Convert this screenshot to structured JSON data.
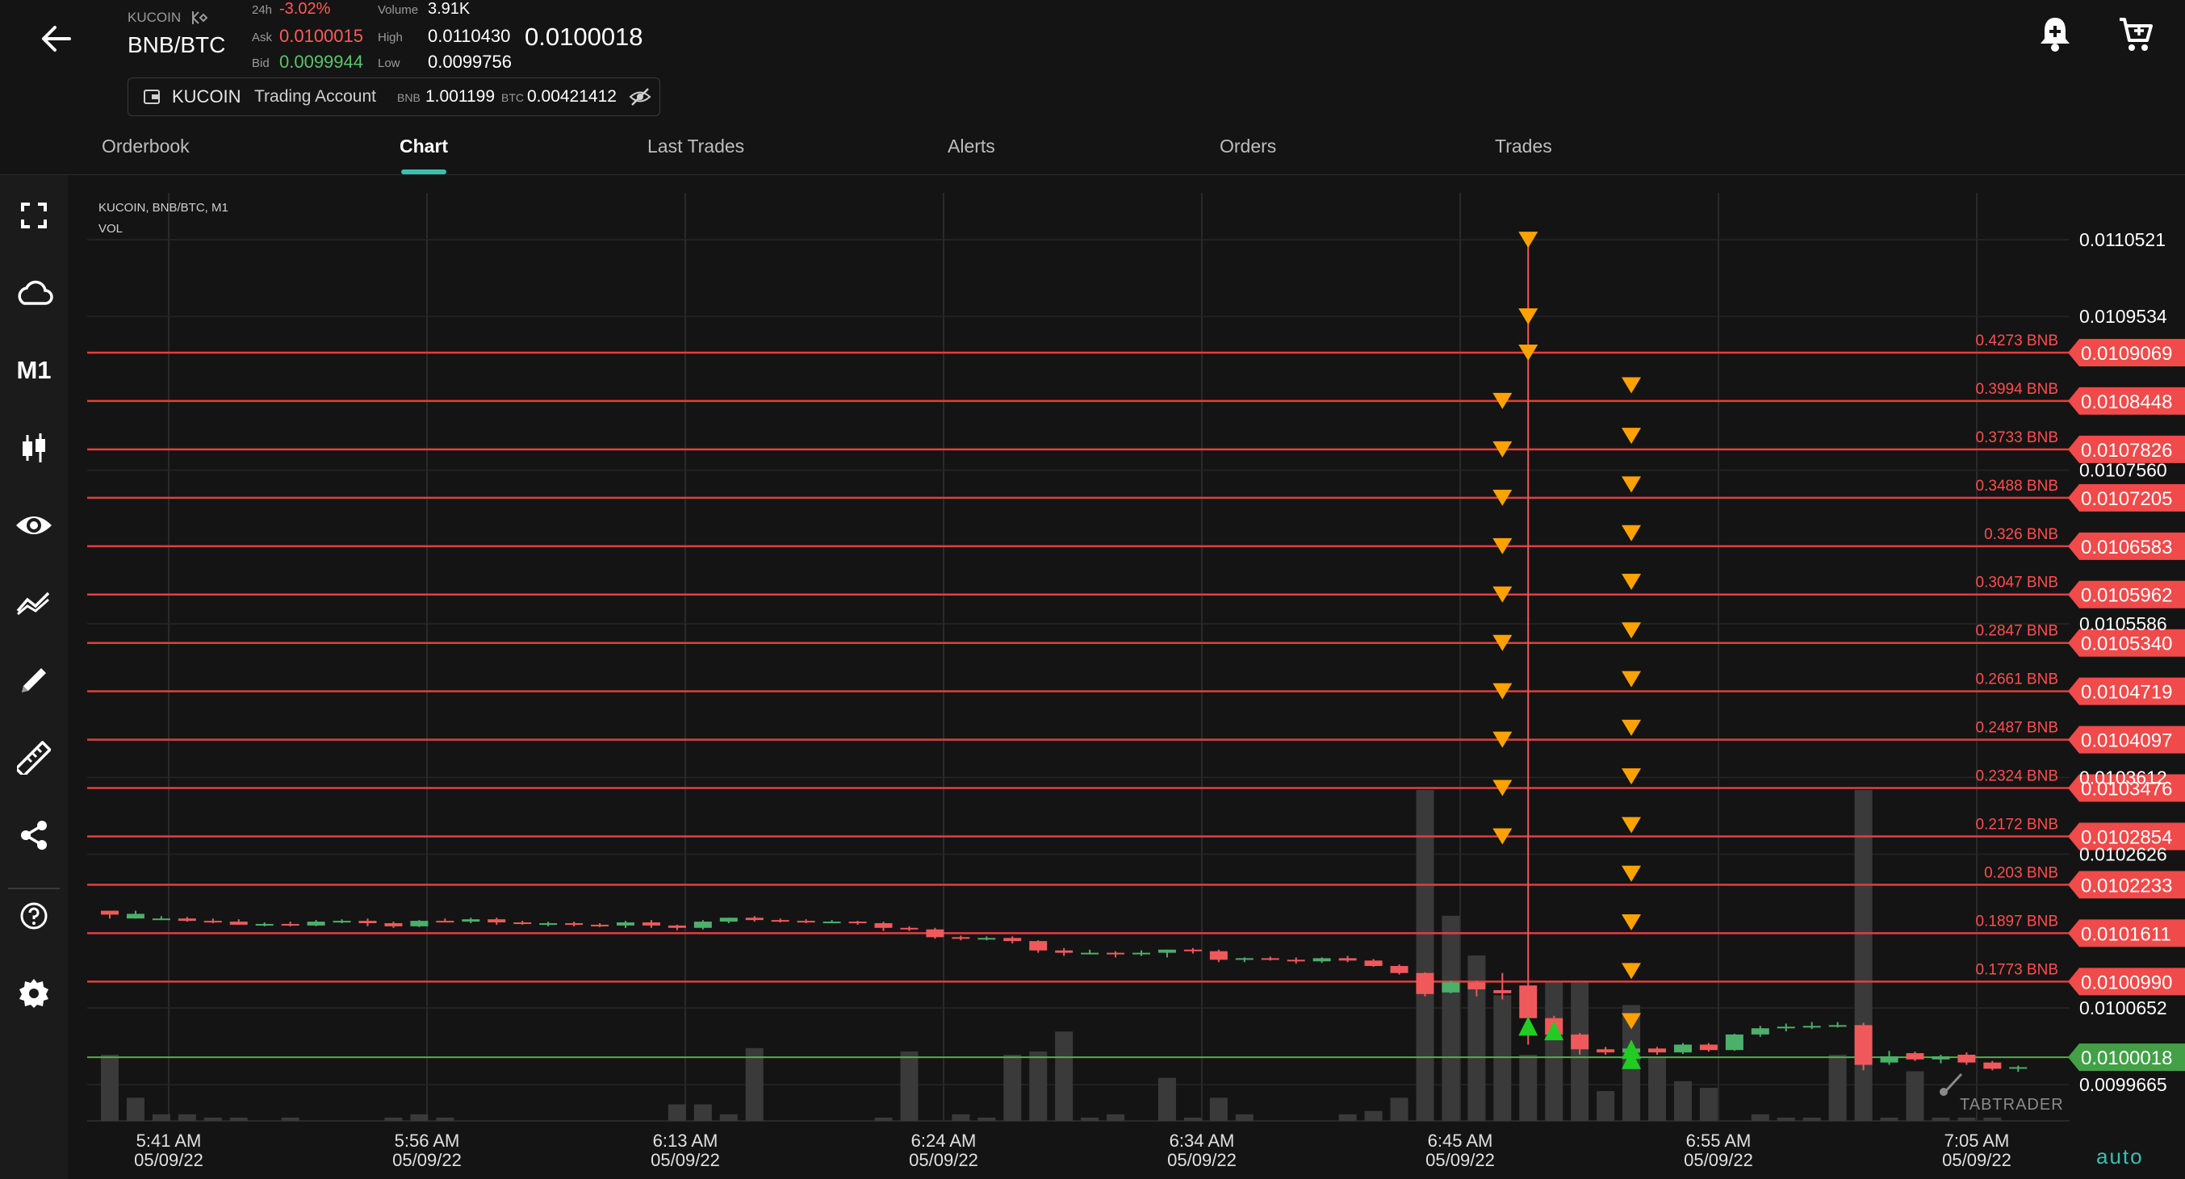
{
  "header": {
    "exchange_label": "KUCOIN",
    "pair": "BNB/BTC",
    "change_label": "24h",
    "change": "-3.02%",
    "ask_label": "Ask",
    "ask": "0.0100015",
    "bid_label": "Bid",
    "bid": "0.0099944",
    "volume_label": "Volume",
    "volume": "3.91K",
    "high_label": "High",
    "high": "0.0110430",
    "low_label": "Low",
    "low": "0.0099756",
    "last_price": "0.0100018"
  },
  "account": {
    "exchange": "KUCOIN",
    "name": "Trading Account",
    "bnb_label": "BNB",
    "bnb": "1.001199",
    "btc_label": "BTC",
    "btc": "0.00421412"
  },
  "tabs": [
    "Orderbook",
    "Chart",
    "Last Trades",
    "Alerts",
    "Orders",
    "Trades"
  ],
  "active_tab": "Chart",
  "sidebar": {
    "timeframe": "M1",
    "icons": [
      "fullscreen-icon",
      "cloud-icon",
      "timeframe",
      "candles-icon",
      "eye-icon",
      "indicators-icon",
      "pencil-icon",
      "ruler-icon",
      "share-icon",
      "help-icon",
      "settings-icon"
    ]
  },
  "chart_meta": {
    "legend_line1": "KUCOIN, BNB/BTC, M1",
    "legend_line2": "VOL",
    "watermark": "TABTRADER",
    "scale_mode": "auto"
  },
  "chart_data": {
    "type": "candlestick",
    "ylim": [
      0.00992,
      0.011135
    ],
    "x_tick_labels": [
      {
        "time": "5:41 AM",
        "date": "05/09/22"
      },
      {
        "time": "5:56 AM",
        "date": "05/09/22"
      },
      {
        "time": "6:13 AM",
        "date": "05/09/22"
      },
      {
        "time": "6:24 AM",
        "date": "05/09/22"
      },
      {
        "time": "6:34 AM",
        "date": "05/09/22"
      },
      {
        "time": "6:45 AM",
        "date": "05/09/22"
      },
      {
        "time": "6:55 AM",
        "date": "05/09/22"
      },
      {
        "time": "7:05 AM",
        "date": "05/09/22"
      }
    ],
    "y_tick_labels": [
      "0.0110521",
      "0.0109534",
      "0.0107560",
      "0.0105586",
      "0.0103612",
      "0.0102626",
      "0.0100652",
      "0.0099665"
    ],
    "order_levels": [
      {
        "price": "0.0109069",
        "amount": "0.4273 BNB"
      },
      {
        "price": "0.0108448",
        "amount": "0.3994 BNB"
      },
      {
        "price": "0.0107826",
        "amount": "0.3733 BNB"
      },
      {
        "price": "0.0107205",
        "amount": "0.3488 BNB"
      },
      {
        "price": "0.0106583",
        "amount": "0.326 BNB"
      },
      {
        "price": "0.0105962",
        "amount": "0.3047 BNB"
      },
      {
        "price": "0.0105340",
        "amount": "0.2847 BNB"
      },
      {
        "price": "0.0104719",
        "amount": "0.2661 BNB"
      },
      {
        "price": "0.0104097",
        "amount": "0.2487 BNB"
      },
      {
        "price": "0.0103476",
        "amount": "0.2324 BNB"
      },
      {
        "price": "0.0102854",
        "amount": "0.2172 BNB"
      },
      {
        "price": "0.0102233",
        "amount": "0.203 BNB"
      },
      {
        "price": "0.0101611",
        "amount": "0.1897 BNB"
      },
      {
        "price": "0.0100990",
        "amount": "0.1773 BNB"
      }
    ],
    "last_price_line": "0.0100018",
    "candles": [
      {
        "o": 0.01019,
        "h": 0.01019,
        "l": 0.01018,
        "c": 0.010185
      },
      {
        "o": 0.01018,
        "h": 0.01019,
        "l": 0.01018,
        "c": 0.010186
      },
      {
        "o": 0.01018,
        "h": 0.010183,
        "l": 0.010178,
        "c": 0.01018
      },
      {
        "o": 0.01018,
        "h": 0.010182,
        "l": 0.010176,
        "c": 0.010177
      },
      {
        "o": 0.010177,
        "h": 0.01018,
        "l": 0.010174,
        "c": 0.010176
      },
      {
        "o": 0.010176,
        "h": 0.010179,
        "l": 0.010172,
        "c": 0.010172
      },
      {
        "o": 0.010172,
        "h": 0.010175,
        "l": 0.01017,
        "c": 0.010173
      },
      {
        "o": 0.010173,
        "h": 0.010176,
        "l": 0.01017,
        "c": 0.010171
      },
      {
        "o": 0.010171,
        "h": 0.010178,
        "l": 0.01017,
        "c": 0.010176
      },
      {
        "o": 0.010176,
        "h": 0.010179,
        "l": 0.010174,
        "c": 0.010177
      },
      {
        "o": 0.010177,
        "h": 0.01018,
        "l": 0.01017,
        "c": 0.010174
      },
      {
        "o": 0.010174,
        "h": 0.010176,
        "l": 0.010168,
        "c": 0.01017
      },
      {
        "o": 0.01017,
        "h": 0.010178,
        "l": 0.010169,
        "c": 0.010177
      },
      {
        "o": 0.010177,
        "h": 0.01018,
        "l": 0.010175,
        "c": 0.010176
      },
      {
        "o": 0.010176,
        "h": 0.010181,
        "l": 0.010174,
        "c": 0.010179
      },
      {
        "o": 0.010179,
        "h": 0.010181,
        "l": 0.010172,
        "c": 0.010175
      },
      {
        "o": 0.010175,
        "h": 0.010177,
        "l": 0.010172,
        "c": 0.010174
      },
      {
        "o": 0.010174,
        "h": 0.010176,
        "l": 0.01017,
        "c": 0.010174
      },
      {
        "o": 0.010174,
        "h": 0.010176,
        "l": 0.01017,
        "c": 0.010172
      },
      {
        "o": 0.010172,
        "h": 0.010174,
        "l": 0.010169,
        "c": 0.010171
      },
      {
        "o": 0.010171,
        "h": 0.010177,
        "l": 0.010168,
        "c": 0.010175
      },
      {
        "o": 0.010175,
        "h": 0.010178,
        "l": 0.010168,
        "c": 0.010171
      },
      {
        "o": 0.010171,
        "h": 0.010172,
        "l": 0.010165,
        "c": 0.010168
      },
      {
        "o": 0.010168,
        "h": 0.010178,
        "l": 0.010166,
        "c": 0.010176
      },
      {
        "o": 0.010176,
        "h": 0.010181,
        "l": 0.010174,
        "c": 0.010181
      },
      {
        "o": 0.010181,
        "h": 0.010183,
        "l": 0.010176,
        "c": 0.010178
      },
      {
        "o": 0.010178,
        "h": 0.01018,
        "l": 0.010175,
        "c": 0.010177
      },
      {
        "o": 0.010177,
        "h": 0.010179,
        "l": 0.010174,
        "c": 0.010176
      },
      {
        "o": 0.010176,
        "h": 0.010178,
        "l": 0.010174,
        "c": 0.010176
      },
      {
        "o": 0.010176,
        "h": 0.010177,
        "l": 0.010172,
        "c": 0.010174
      },
      {
        "o": 0.010174,
        "h": 0.010176,
        "l": 0.010164,
        "c": 0.010168
      },
      {
        "o": 0.010168,
        "h": 0.01017,
        "l": 0.010164,
        "c": 0.010166
      },
      {
        "o": 0.010166,
        "h": 0.010168,
        "l": 0.010154,
        "c": 0.010156
      },
      {
        "o": 0.010156,
        "h": 0.010158,
        "l": 0.010152,
        "c": 0.010154
      },
      {
        "o": 0.010154,
        "h": 0.010157,
        "l": 0.010152,
        "c": 0.010155
      },
      {
        "o": 0.010155,
        "h": 0.010157,
        "l": 0.010148,
        "c": 0.010151
      },
      {
        "o": 0.010151,
        "h": 0.010152,
        "l": 0.010136,
        "c": 0.010139
      },
      {
        "o": 0.010139,
        "h": 0.010142,
        "l": 0.010132,
        "c": 0.010136
      },
      {
        "o": 0.010136,
        "h": 0.01014,
        "l": 0.010134,
        "c": 0.010136
      },
      {
        "o": 0.010136,
        "h": 0.010138,
        "l": 0.01013,
        "c": 0.010134
      },
      {
        "o": 0.010134,
        "h": 0.010139,
        "l": 0.010132,
        "c": 0.010136
      },
      {
        "o": 0.010136,
        "h": 0.01014,
        "l": 0.01013,
        "c": 0.01014
      },
      {
        "o": 0.01014,
        "h": 0.010142,
        "l": 0.010135,
        "c": 0.010138
      },
      {
        "o": 0.010138,
        "h": 0.01014,
        "l": 0.010124,
        "c": 0.010127
      },
      {
        "o": 0.010127,
        "h": 0.01013,
        "l": 0.010124,
        "c": 0.010129
      },
      {
        "o": 0.010129,
        "h": 0.010131,
        "l": 0.010126,
        "c": 0.010127
      },
      {
        "o": 0.010127,
        "h": 0.01013,
        "l": 0.010122,
        "c": 0.010125
      },
      {
        "o": 0.010125,
        "h": 0.01013,
        "l": 0.010123,
        "c": 0.010129
      },
      {
        "o": 0.010129,
        "h": 0.010132,
        "l": 0.010124,
        "c": 0.010126
      },
      {
        "o": 0.010126,
        "h": 0.010128,
        "l": 0.010118,
        "c": 0.010119
      },
      {
        "o": 0.010119,
        "h": 0.010121,
        "l": 0.010108,
        "c": 0.01011
      },
      {
        "o": 0.01011,
        "h": 0.010111,
        "l": 0.01008,
        "c": 0.010083
      },
      {
        "o": 0.010085,
        "h": 0.0101,
        "l": 0.010084,
        "c": 0.010098
      },
      {
        "o": 0.010098,
        "h": 0.0101,
        "l": 0.01008,
        "c": 0.010089
      },
      {
        "o": 0.010088,
        "h": 0.01011,
        "l": 0.010076,
        "c": 0.010084
      },
      {
        "o": 0.010094,
        "h": 0.011052,
        "l": 0.010018,
        "c": 0.010052
      },
      {
        "o": 0.010052,
        "h": 0.010055,
        "l": 0.010025,
        "c": 0.010031
      },
      {
        "o": 0.010031,
        "h": 0.010033,
        "l": 0.010005,
        "c": 0.010012
      },
      {
        "o": 0.010012,
        "h": 0.010015,
        "l": 0.010005,
        "c": 0.010008
      },
      {
        "o": 0.010008,
        "h": 0.010023,
        "l": 0.009995,
        "c": 0.010013
      },
      {
        "o": 0.010013,
        "h": 0.010015,
        "l": 0.010005,
        "c": 0.010008
      },
      {
        "o": 0.010008,
        "h": 0.01002,
        "l": 0.010006,
        "c": 0.010018
      },
      {
        "o": 0.010018,
        "h": 0.01002,
        "l": 0.010009,
        "c": 0.010011
      },
      {
        "o": 0.010011,
        "h": 0.010032,
        "l": 0.01001,
        "c": 0.010031
      },
      {
        "o": 0.010031,
        "h": 0.010042,
        "l": 0.010028,
        "c": 0.010039
      },
      {
        "o": 0.010039,
        "h": 0.010045,
        "l": 0.010035,
        "c": 0.010041
      },
      {
        "o": 0.010041,
        "h": 0.010047,
        "l": 0.010038,
        "c": 0.010042
      },
      {
        "o": 0.010042,
        "h": 0.010047,
        "l": 0.01004,
        "c": 0.010043
      },
      {
        "o": 0.010043,
        "h": 0.010046,
        "l": 0.009985,
        "c": 0.009992
      },
      {
        "o": 0.009995,
        "h": 0.01001,
        "l": 0.009992,
        "c": 0.010003
      },
      {
        "o": 0.010007,
        "h": 0.010009,
        "l": 0.009997,
        "c": 0.009999
      },
      {
        "o": 0.009999,
        "h": 0.010005,
        "l": 0.009994,
        "c": 0.010003
      },
      {
        "o": 0.010005,
        "h": 0.010008,
        "l": 0.009992,
        "c": 0.009995
      },
      {
        "o": 0.009995,
        "h": 0.009997,
        "l": 0.009985,
        "c": 0.009987
      },
      {
        "o": 0.009987,
        "h": 0.009991,
        "l": 0.009983,
        "c": 0.009989
      }
    ],
    "volumes": [
      0.2,
      0.07,
      0.02,
      0.02,
      0.01,
      0.01,
      0.0,
      0.01,
      0.0,
      0.0,
      0.0,
      0.01,
      0.02,
      0.01,
      0.0,
      0.0,
      0.0,
      0.0,
      0.0,
      0.0,
      0.0,
      0.0,
      0.05,
      0.05,
      0.02,
      0.22,
      0.0,
      0.0,
      0.0,
      0.0,
      0.01,
      0.21,
      0.0,
      0.02,
      0.01,
      0.2,
      0.21,
      0.27,
      0.01,
      0.02,
      0.0,
      0.13,
      0.01,
      0.07,
      0.02,
      0.0,
      0.0,
      0.0,
      0.02,
      0.03,
      0.07,
      1.0,
      0.62,
      0.5,
      0.38,
      0.2,
      0.42,
      0.42,
      0.09,
      0.35,
      0.19,
      0.12,
      0.1,
      0.0,
      0.02,
      0.01,
      0.01,
      0.2,
      1.0,
      0.01,
      0.15,
      0.01,
      0.01,
      0.01,
      0.0
    ],
    "sell_markers": [
      {
        "candle": 55,
        "price": 0.011052
      },
      {
        "candle": 55,
        "price": 0.0109534
      },
      {
        "candle": 55,
        "price": 0.0109069
      },
      {
        "candle": 54,
        "price": 0.0108448
      },
      {
        "candle": 54,
        "price": 0.0107826
      },
      {
        "candle": 54,
        "price": 0.0107205
      },
      {
        "candle": 54,
        "price": 0.0106583
      },
      {
        "candle": 54,
        "price": 0.0105962
      },
      {
        "candle": 54,
        "price": 0.010534
      },
      {
        "candle": 54,
        "price": 0.0104719
      },
      {
        "candle": 54,
        "price": 0.0104097
      },
      {
        "candle": 54,
        "price": 0.0103476
      },
      {
        "candle": 54,
        "price": 0.0102854
      },
      {
        "candle": 59,
        "price": 0.010865
      },
      {
        "candle": 59,
        "price": 0.0108
      },
      {
        "candle": 59,
        "price": 0.0107375
      },
      {
        "candle": 59,
        "price": 0.010675
      },
      {
        "candle": 59,
        "price": 0.0106125
      },
      {
        "candle": 59,
        "price": 0.01055
      },
      {
        "candle": 59,
        "price": 0.0104875
      },
      {
        "candle": 59,
        "price": 0.010425
      },
      {
        "candle": 59,
        "price": 0.0103625
      },
      {
        "candle": 59,
        "price": 0.0103
      },
      {
        "candle": 59,
        "price": 0.0102375
      },
      {
        "candle": 59,
        "price": 0.010175
      },
      {
        "candle": 59,
        "price": 0.0101125
      },
      {
        "candle": 59,
        "price": 0.010048
      }
    ],
    "buy_markers": [
      {
        "candle": 55,
        "price": 0.010042
      },
      {
        "candle": 56,
        "price": 0.010036
      },
      {
        "candle": 59,
        "price": 0.009999
      },
      {
        "candle": 59,
        "price": 0.010012
      }
    ],
    "colors": {
      "up": "#4caf6a",
      "down": "#f0595b",
      "order_line": "#e0403f",
      "last_price": "#4caf50",
      "sell_marker": "#ffa200",
      "buy_marker": "#22cc22"
    }
  }
}
